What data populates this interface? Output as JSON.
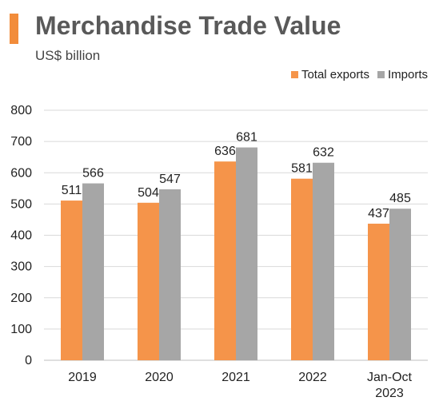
{
  "header": {
    "title": "Merchandise Trade Value",
    "subtitle": "US$ billion"
  },
  "colors": {
    "accent": "#f28c3a",
    "exports": "#f5944a",
    "imports": "#a6a6a6",
    "gridline": "#d9d9d9",
    "axis": "#bfbfbf"
  },
  "chart_data": {
    "type": "bar",
    "title": "Merchandise Trade Value",
    "subtitle": "US$ billion",
    "categories": [
      "2019",
      "2020",
      "2021",
      "2022",
      "Jan-Oct 2023"
    ],
    "series": [
      {
        "name": "Total exports",
        "values": [
          511,
          504,
          636,
          581,
          437
        ]
      },
      {
        "name": "Imports",
        "values": [
          566,
          547,
          681,
          632,
          485
        ]
      }
    ],
    "xlabel": "",
    "ylabel": "",
    "ylim": [
      0,
      800
    ],
    "yticks": [
      0,
      100,
      200,
      300,
      400,
      500,
      600,
      700,
      800
    ],
    "grid": true,
    "legend_position": "top-right",
    "data_labels": true
  }
}
